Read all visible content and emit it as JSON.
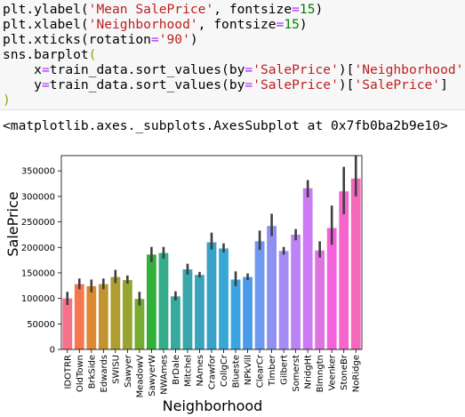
{
  "code": {
    "line1": {
      "a": "plt.ylabel(",
      "s1": "'Mean SalePrice'",
      "b": ", fontsize",
      "op": "=",
      "num": "15",
      "c": ")"
    },
    "line2": {
      "a": "plt.xlabel(",
      "s1": "'Neighborhood'",
      "b": ", fontsize",
      "op": "=",
      "num": "15",
      "c": ")"
    },
    "line3": {
      "a": "plt.xticks(rotation",
      "op": "=",
      "s1": "'90'",
      "c": ")"
    },
    "line4": {
      "a": "sns.barplot",
      "p": "("
    },
    "line5": {
      "indent": "    ",
      "a": "x",
      "op": "=",
      "b": "train_data.sort_values(by",
      "op2": "=",
      "s1": "'SalePrice'",
      "c": ")[",
      "s2": "'Neighborhood'",
      "d": "],"
    },
    "line6": {
      "indent": "    ",
      "a": "y",
      "op": "=",
      "b": "train_data.sort_values(by",
      "op2": "=",
      "s1": "'SalePrice'",
      "c": ")[",
      "s2": "'SalePrice'",
      "d": "]"
    },
    "line7": {
      "p": ")"
    }
  },
  "output": {
    "text": "<matplotlib.axes._subplots.AxesSubplot at 0x7fb0ba2b9e10>"
  },
  "colors": {
    "code_bg": "#f7f7f7",
    "string": "#ba2121",
    "number": "#008000",
    "operator": "#aa22ff",
    "paren": "#9d9d00"
  },
  "chart_data": {
    "type": "bar",
    "title": "",
    "xlabel": "Neighborhood",
    "ylabel": "SalePrice",
    "ylim": [
      0,
      380000
    ],
    "yticks": [
      0,
      50000,
      100000,
      150000,
      200000,
      250000,
      300000,
      350000
    ],
    "ytick_labels": [
      "0",
      "50000",
      "100000",
      "150000",
      "200000",
      "250000",
      "300000",
      "350000"
    ],
    "categories": [
      "IDOTRR",
      "OldTown",
      "BrkSide",
      "Edwards",
      "SWISU",
      "Sawyer",
      "MeadowV",
      "SawyerW",
      "NWAmes",
      "BrDale",
      "Mitchel",
      "NAmes",
      "Crawfor",
      "CollgCr",
      "Blueste",
      "NPkVill",
      "ClearCr",
      "Timber",
      "Gilbert",
      "Somerst",
      "NridgHt",
      "Blmngtn",
      "Veenker",
      "StoneBr",
      "NoRidge"
    ],
    "values": [
      100000,
      128000,
      124000,
      128000,
      142000,
      136000,
      99000,
      186000,
      189000,
      104000,
      157000,
      146000,
      210000,
      198000,
      137000,
      142000,
      212000,
      242000,
      193000,
      225000,
      316000,
      194000,
      238000,
      310000,
      335000
    ],
    "ci_low": [
      87000,
      118000,
      112000,
      118000,
      130000,
      129000,
      86000,
      171000,
      178000,
      96000,
      147000,
      141000,
      196000,
      190000,
      124000,
      136000,
      195000,
      222000,
      186000,
      214000,
      298000,
      180000,
      205000,
      265000,
      300000
    ],
    "ci_high": [
      113000,
      139000,
      137000,
      139000,
      156000,
      145000,
      113000,
      201000,
      201000,
      114000,
      168000,
      152000,
      229000,
      208000,
      153000,
      149000,
      233000,
      266000,
      201000,
      236000,
      332000,
      212000,
      282000,
      358000,
      380000
    ],
    "bar_colors": [
      "#f77189",
      "#f7754f",
      "#dc8932",
      "#c39532",
      "#ae9d31",
      "#97a431",
      "#77ab31",
      "#33b039",
      "#36ad8a",
      "#38aa9d",
      "#39a7ac",
      "#3ba3bb",
      "#3aa2c8",
      "#37a8d4",
      "#3ba5e1",
      "#4a9ce8",
      "#6e9af0",
      "#8e91f0",
      "#a48cf4",
      "#bb83f4",
      "#cc7af4",
      "#de73e2",
      "#f461dd",
      "#f565cc",
      "#f668b9"
    ],
    "grid": false,
    "legend": "none"
  }
}
